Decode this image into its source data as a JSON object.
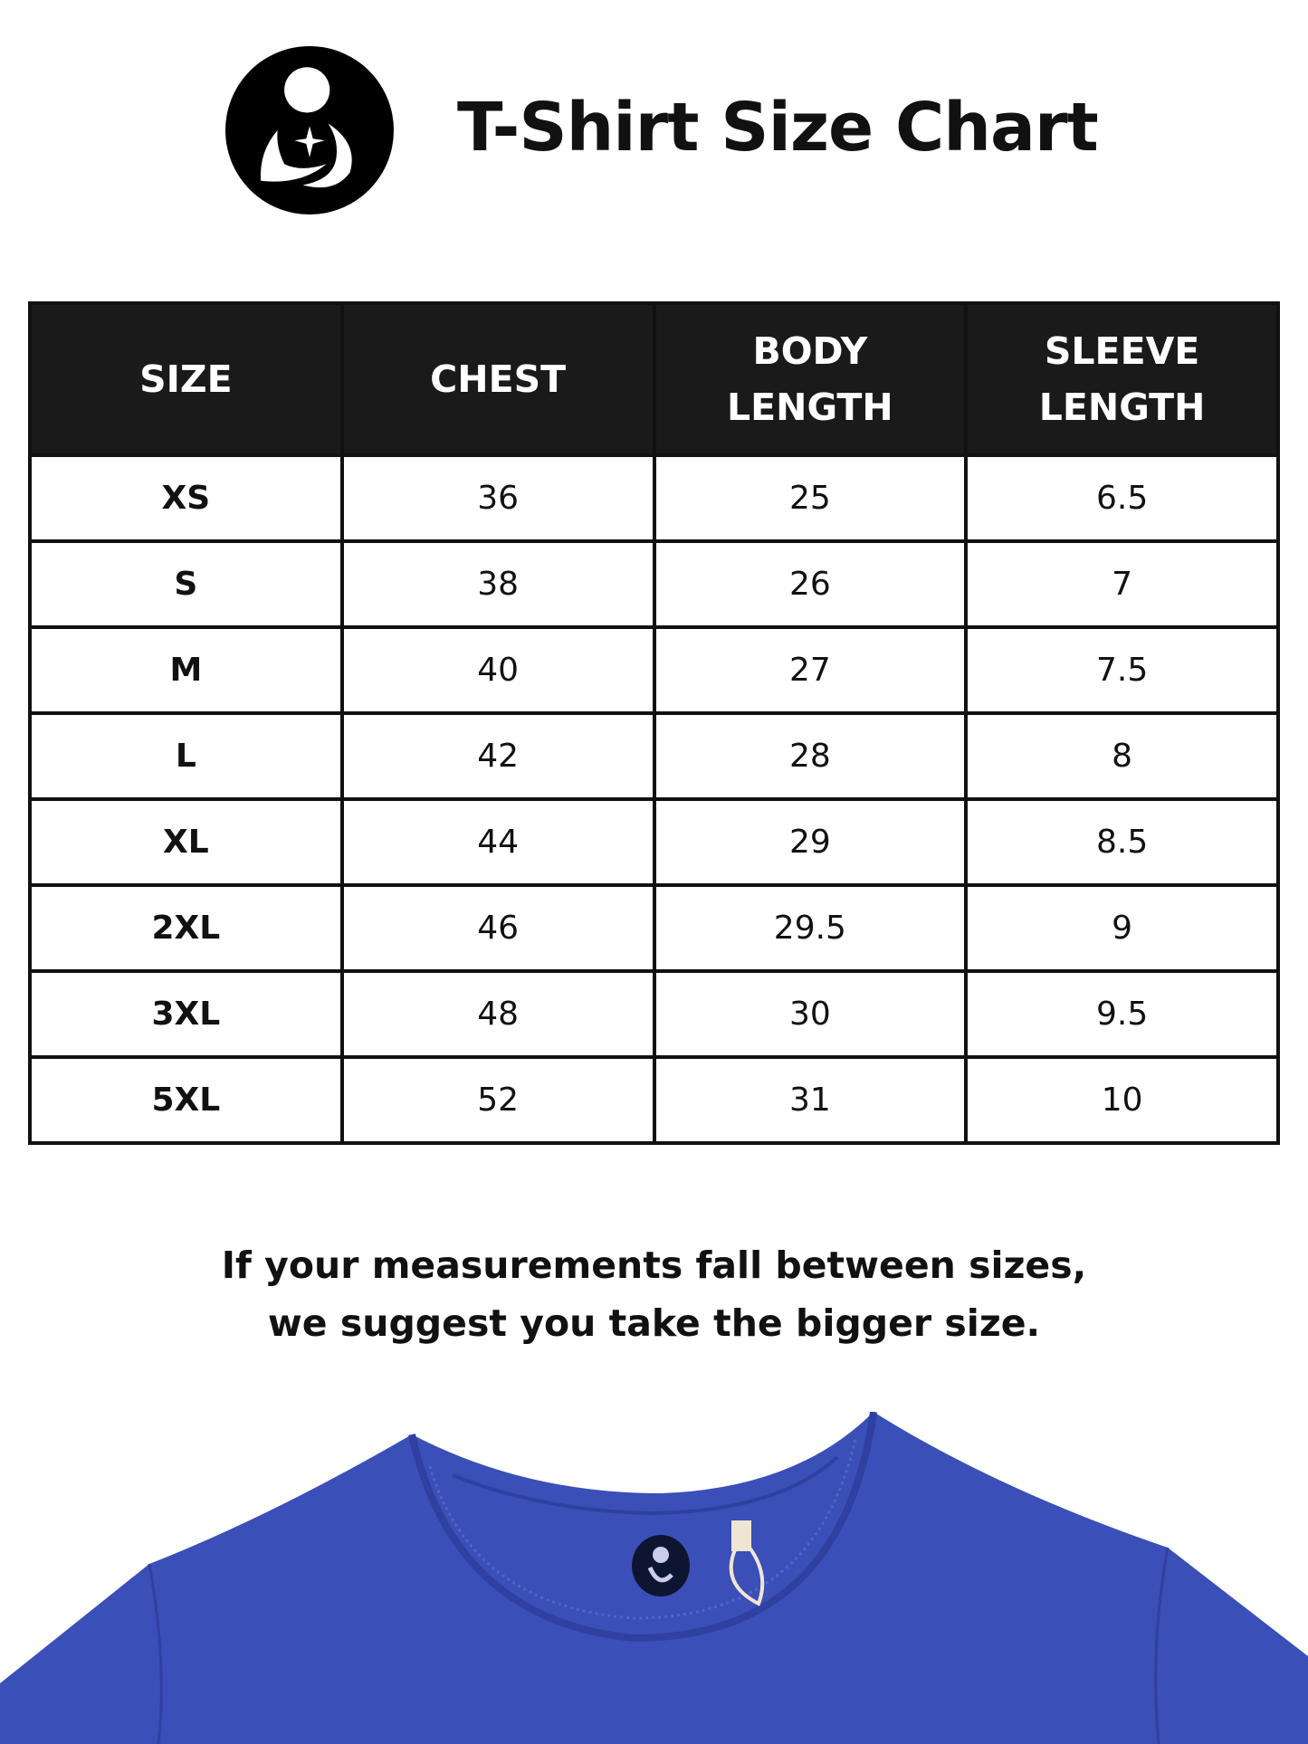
{
  "header": {
    "title": "T-Shirt Size Chart",
    "logo_icon": "mother-child-logo-icon"
  },
  "table": {
    "columns": [
      "SIZE",
      "CHEST",
      "BODY\nLENGTH",
      "SLEEVE\nLENGTH"
    ],
    "rows": [
      [
        "XS",
        "36",
        "25",
        "6.5"
      ],
      [
        "S",
        "38",
        "26",
        "7"
      ],
      [
        "M",
        "40",
        "27",
        "7.5"
      ],
      [
        "L",
        "42",
        "28",
        "8"
      ],
      [
        "XL",
        "44",
        "29",
        "8.5"
      ],
      [
        "2XL",
        "46",
        "29.5",
        "9"
      ],
      [
        "3XL",
        "48",
        "30",
        "9.5"
      ],
      [
        "5XL",
        "52",
        "31",
        "10"
      ]
    ]
  },
  "note": {
    "line1": "If your measurements fall between sizes,",
    "line2": "we suggest you take the bigger size."
  },
  "colors": {
    "header_bg": "#1a1a1a",
    "shirt": "#3b4fb8"
  }
}
